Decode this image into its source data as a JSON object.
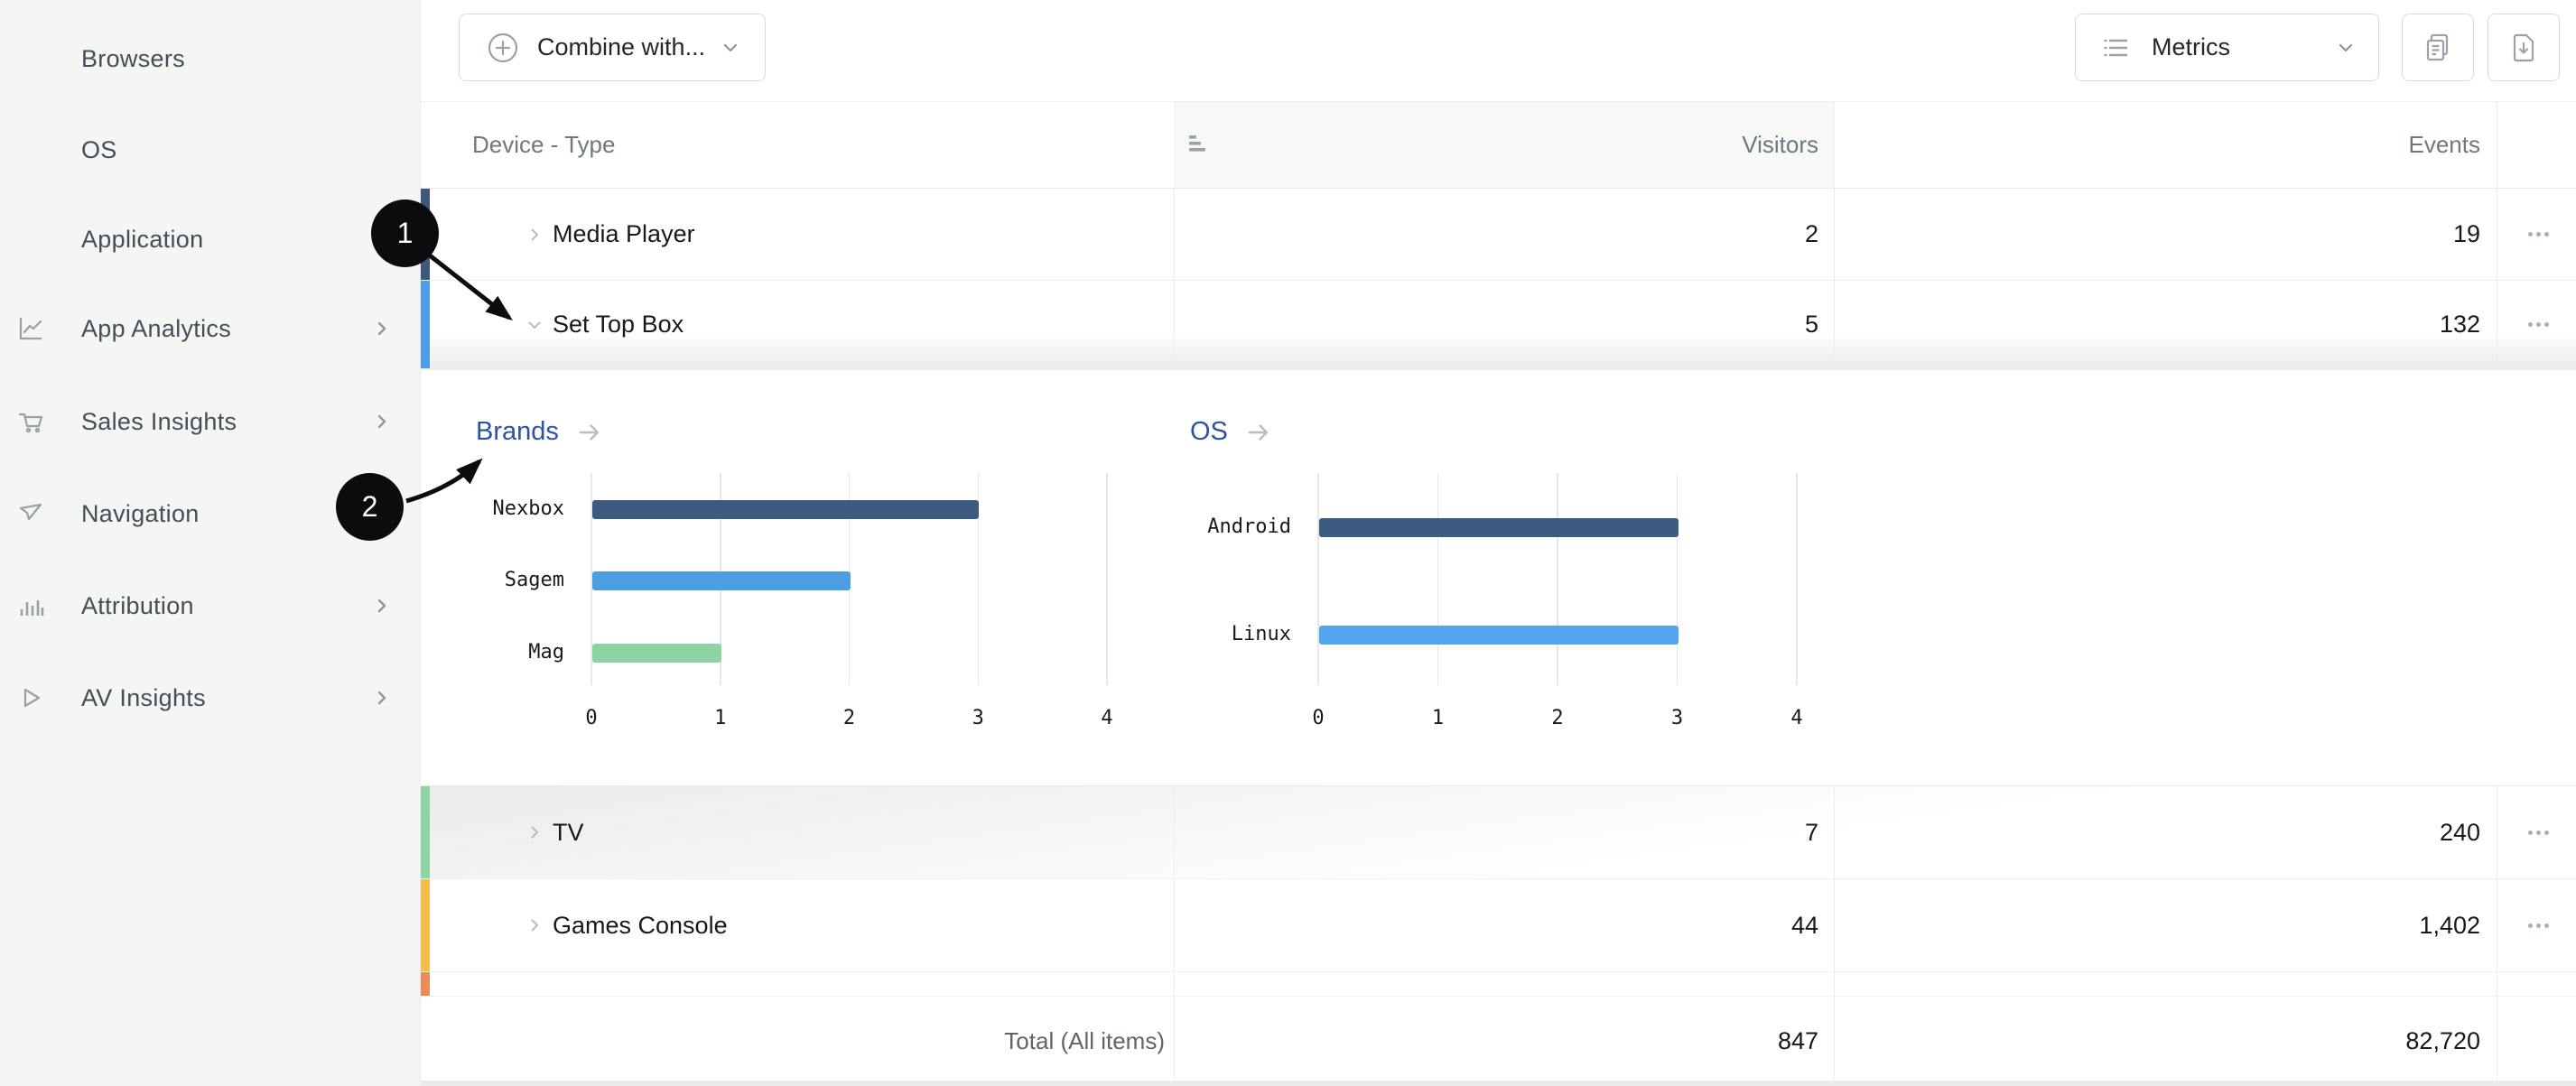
{
  "sidebar": {
    "items": [
      {
        "label": "Browsers",
        "icon": "",
        "chevron": false
      },
      {
        "label": "OS",
        "icon": "",
        "chevron": false
      },
      {
        "label": "Application",
        "icon": "",
        "chevron": false
      },
      {
        "label": "App Analytics",
        "icon": "line-chart-icon",
        "chevron": true
      },
      {
        "label": "Sales Insights",
        "icon": "cart-icon",
        "chevron": true
      },
      {
        "label": "Navigation",
        "icon": "paper-plane-icon",
        "chevron": true
      },
      {
        "label": "Attribution",
        "icon": "bar-chart-icon",
        "chevron": true
      },
      {
        "label": "AV Insights",
        "icon": "play-icon",
        "chevron": true
      }
    ]
  },
  "toolbar": {
    "combine_label": "Combine with...",
    "metrics_label": "Metrics"
  },
  "table": {
    "columns": {
      "device": "Device - Type",
      "visitors": "Visitors",
      "events": "Events"
    },
    "rows": [
      {
        "name": "Media Player",
        "visitors": "2",
        "events": "19",
        "color": "#3d5878",
        "expanded": false
      },
      {
        "name": "Set Top Box",
        "visitors": "5",
        "events": "132",
        "color": "#4f9ce8",
        "expanded": true
      },
      {
        "name": "TV",
        "visitors": "7",
        "events": "240",
        "color": "#8ed3a4",
        "expanded": false
      },
      {
        "name": "Games Console",
        "visitors": "44",
        "events": "1,402",
        "color": "#f2bd49",
        "expanded": false
      }
    ],
    "stub_color": "#ee8a58",
    "total": {
      "label": "Total (All items)",
      "visitors": "847",
      "events": "82,720"
    }
  },
  "chart_data": [
    {
      "type": "bar",
      "orientation": "horizontal",
      "title": "Brands",
      "categories": [
        "Nexbox",
        "Sagem",
        "Mag"
      ],
      "values": [
        3,
        2,
        1
      ],
      "colors": [
        "#3d5a80",
        "#4d9de2",
        "#8ed3a3"
      ],
      "xlim": [
        0,
        4
      ],
      "xticks": [
        "0",
        "1",
        "2",
        "3",
        "4"
      ],
      "grid": true,
      "legend": false
    },
    {
      "type": "bar",
      "orientation": "horizontal",
      "title": "OS",
      "categories": [
        "Android",
        "Linux"
      ],
      "values": [
        3,
        3
      ],
      "colors": [
        "#3d5a80",
        "#54a4f2"
      ],
      "xlim": [
        0,
        4
      ],
      "xticks": [
        "0",
        "1",
        "2",
        "3",
        "4"
      ],
      "grid": true,
      "legend": false
    }
  ],
  "annotations": [
    {
      "number": "1"
    },
    {
      "number": "2"
    }
  ]
}
